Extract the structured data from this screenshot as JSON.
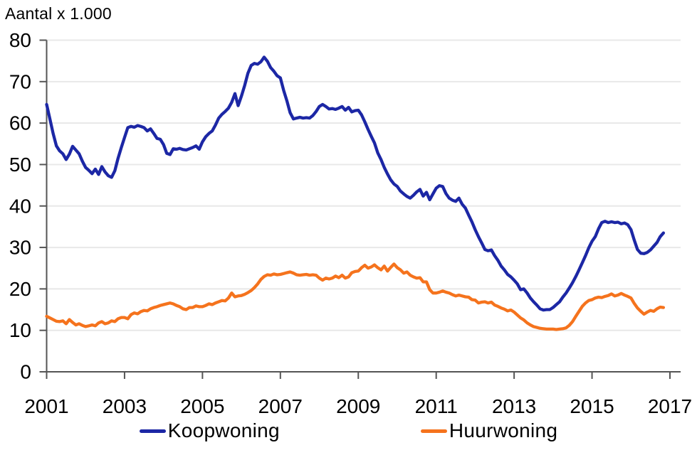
{
  "chart_data": {
    "type": "line",
    "title": "Aantal x 1.000",
    "x_start_year": 2001,
    "x_step_months": 1,
    "x_end_label": "Nov 2016",
    "x_ticks": [
      2001,
      2003,
      2005,
      2007,
      2009,
      2011,
      2013,
      2015,
      2017
    ],
    "y_ticks": [
      0,
      10,
      20,
      30,
      40,
      50,
      60,
      70,
      80
    ],
    "ylim": [
      0,
      80
    ],
    "grid": "horizontal",
    "legend_position": "bottom-center",
    "axis_color": "#555555",
    "grid_color": "#e8e8e8",
    "text_color": "#000000",
    "series": [
      {
        "name": "Koopwoning",
        "color": "#1c27a5",
        "values": [
          64.5,
          61.0,
          57.5,
          54.5,
          53.3,
          52.6,
          51.2,
          52.5,
          54.4,
          53.5,
          52.6,
          50.8,
          49.3,
          48.6,
          47.8,
          48.9,
          47.6,
          49.5,
          48.2,
          47.3,
          46.9,
          48.5,
          51.5,
          54.1,
          56.5,
          58.9,
          59.2,
          59.0,
          59.4,
          59.2,
          58.9,
          58.1,
          58.6,
          57.5,
          56.3,
          56.1,
          54.8,
          52.7,
          52.4,
          53.8,
          53.7,
          53.9,
          53.6,
          53.5,
          53.8,
          54.1,
          54.5,
          53.7,
          55.5,
          56.7,
          57.5,
          58.1,
          59.5,
          61.2,
          62.1,
          62.8,
          63.6,
          65.0,
          67.1,
          64.2,
          66.5,
          69.1,
          72.0,
          73.9,
          74.4,
          74.2,
          74.8,
          75.9,
          74.9,
          73.4,
          72.5,
          71.4,
          70.9,
          67.9,
          65.4,
          62.5,
          61.0,
          61.2,
          61.4,
          61.2,
          61.3,
          61.2,
          61.8,
          62.8,
          64.0,
          64.5,
          64.0,
          63.4,
          63.5,
          63.3,
          63.6,
          64.0,
          63.1,
          63.8,
          62.7,
          63.0,
          63.1,
          62.0,
          60.3,
          58.5,
          56.8,
          55.2,
          52.8,
          51.2,
          49.3,
          47.7,
          46.3,
          45.3,
          44.7,
          43.6,
          42.9,
          42.3,
          41.9,
          42.6,
          43.4,
          44.0,
          42.4,
          43.3,
          41.5,
          42.9,
          44.3,
          44.9,
          44.7,
          43.0,
          41.9,
          41.4,
          41.1,
          41.9,
          40.4,
          39.5,
          37.8,
          36.2,
          34.3,
          32.6,
          31.1,
          29.5,
          29.2,
          29.4,
          28.0,
          26.9,
          25.5,
          24.6,
          23.5,
          22.9,
          22.1,
          21.2,
          19.8,
          20.0,
          19.0,
          17.8,
          16.9,
          16.1,
          15.2,
          14.9,
          15.0,
          15.0,
          15.5,
          16.2,
          16.9,
          18.0,
          19.0,
          20.2,
          21.5,
          23.0,
          24.6,
          26.3,
          28.0,
          29.9,
          31.5,
          32.6,
          34.5,
          36.0,
          36.3,
          36.0,
          36.2,
          36.0,
          36.1,
          35.7,
          35.9,
          35.5,
          34.3,
          31.8,
          29.5,
          28.6,
          28.5,
          28.8,
          29.4,
          30.3,
          31.2,
          32.6,
          33.5
        ]
      },
      {
        "name": "Huurwoning",
        "color": "#f5731d",
        "values": [
          13.4,
          13.0,
          12.6,
          12.2,
          12.1,
          12.3,
          11.6,
          12.6,
          11.9,
          11.3,
          11.6,
          11.2,
          10.9,
          11.1,
          11.3,
          11.1,
          11.8,
          12.1,
          11.6,
          11.8,
          12.3,
          12.1,
          12.8,
          13.1,
          13.1,
          12.8,
          13.8,
          14.2,
          14.0,
          14.5,
          14.8,
          14.7,
          15.2,
          15.5,
          15.7,
          16.0,
          16.2,
          16.4,
          16.6,
          16.4,
          16.0,
          15.7,
          15.2,
          15.0,
          15.5,
          15.5,
          15.9,
          15.7,
          15.7,
          16.0,
          16.4,
          16.2,
          16.6,
          16.9,
          17.2,
          17.1,
          17.8,
          19.0,
          18.1,
          18.3,
          18.4,
          18.7,
          19.1,
          19.6,
          20.3,
          21.2,
          22.3,
          23.0,
          23.4,
          23.3,
          23.6,
          23.4,
          23.5,
          23.7,
          23.9,
          24.1,
          23.8,
          23.4,
          23.3,
          23.4,
          23.5,
          23.3,
          23.4,
          23.3,
          22.6,
          22.1,
          22.6,
          22.4,
          22.6,
          23.1,
          22.7,
          23.3,
          22.6,
          22.9,
          23.9,
          24.2,
          24.3,
          25.1,
          25.7,
          25.0,
          25.3,
          25.8,
          25.1,
          24.6,
          25.5,
          24.3,
          25.2,
          26.0,
          25.1,
          24.6,
          23.8,
          24.1,
          23.3,
          22.9,
          22.6,
          22.7,
          21.7,
          21.7,
          19.8,
          19.0,
          19.0,
          19.2,
          19.5,
          19.2,
          19.0,
          18.6,
          18.3,
          18.5,
          18.3,
          18.1,
          18.0,
          17.4,
          17.3,
          16.6,
          16.8,
          16.9,
          16.6,
          16.8,
          16.1,
          15.8,
          15.4,
          15.1,
          14.7,
          14.9,
          14.4,
          13.7,
          13.0,
          12.5,
          11.8,
          11.3,
          10.9,
          10.7,
          10.5,
          10.4,
          10.3,
          10.3,
          10.3,
          10.2,
          10.3,
          10.4,
          10.6,
          11.2,
          12.1,
          13.4,
          14.6,
          15.8,
          16.6,
          17.2,
          17.4,
          17.8,
          18.0,
          17.9,
          18.2,
          18.4,
          18.8,
          18.3,
          18.5,
          18.9,
          18.5,
          18.2,
          17.8,
          16.5,
          15.4,
          14.6,
          13.9,
          14.4,
          14.8,
          14.6,
          15.2,
          15.6,
          15.5
        ]
      }
    ]
  }
}
